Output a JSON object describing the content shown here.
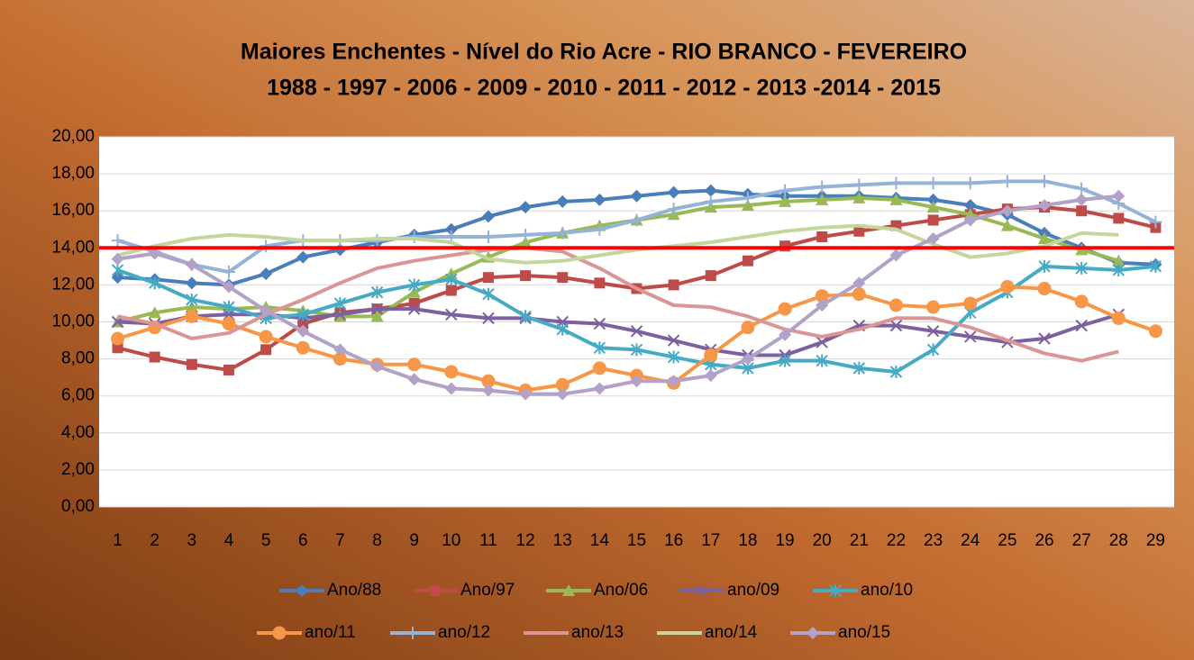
{
  "chart_data": {
    "type": "line",
    "title": [
      "Maiores Enchentes - Nível do Rio Acre -  RIO BRANCO - FEVEREIRO",
      "1988 - 1997 - 2006 - 2009 - 2010 - 2011 - 2012 - 2013 -2014 - 2015"
    ],
    "categories": [
      "1",
      "2",
      "3",
      "4",
      "5",
      "6",
      "7",
      "8",
      "9",
      "10",
      "11",
      "12",
      "13",
      "14",
      "15",
      "16",
      "17",
      "18",
      "19",
      "20",
      "21",
      "22",
      "23",
      "24",
      "25",
      "26",
      "27",
      "28",
      "29"
    ],
    "ylim": [
      0,
      20
    ],
    "yticks": [
      {
        "value": 0,
        "label": "0,00"
      },
      {
        "value": 2,
        "label": "2,00"
      },
      {
        "value": 4,
        "label": "4,00"
      },
      {
        "value": 6,
        "label": "6,00"
      },
      {
        "value": 8,
        "label": "8,00"
      },
      {
        "value": 10,
        "label": "10,00"
      },
      {
        "value": 12,
        "label": "12,00"
      },
      {
        "value": 14,
        "label": "14,00"
      },
      {
        "value": 16,
        "label": "16,00"
      },
      {
        "value": 18,
        "label": "18,00"
      },
      {
        "value": 20,
        "label": "20,00"
      }
    ],
    "grid": true,
    "legend": "bottom",
    "reference_line": {
      "value": 14,
      "color": "#ff0000"
    },
    "series": [
      {
        "name": "Ano/88",
        "color": "#4a7ebb",
        "marker": "diamond",
        "values": [
          12.4,
          12.3,
          12.1,
          12.0,
          12.6,
          13.5,
          13.9,
          14.3,
          14.7,
          15.0,
          15.7,
          16.2,
          16.5,
          16.6,
          16.8,
          17.0,
          17.1,
          16.9,
          16.8,
          16.8,
          16.8,
          16.7,
          16.6,
          16.3,
          15.8,
          14.8,
          14.0,
          13.2,
          13.1
        ]
      },
      {
        "name": "Ano/97",
        "color": "#be4b48",
        "marker": "square",
        "values": [
          8.6,
          8.1,
          7.7,
          7.4,
          8.5,
          9.9,
          10.5,
          10.7,
          11.0,
          11.7,
          12.4,
          12.5,
          12.4,
          12.1,
          11.8,
          12.0,
          12.5,
          13.3,
          14.1,
          14.6,
          14.9,
          15.2,
          15.5,
          15.8,
          16.1,
          16.2,
          16.0,
          15.6,
          15.1
        ]
      },
      {
        "name": "Ano/06",
        "color": "#98b954",
        "marker": "triangle",
        "values": [
          10.0,
          10.5,
          10.8,
          10.7,
          10.8,
          10.6,
          10.3,
          10.3,
          11.6,
          12.6,
          13.5,
          14.3,
          14.8,
          15.2,
          15.5,
          15.8,
          16.2,
          16.3,
          16.5,
          16.6,
          16.7,
          16.6,
          16.2,
          15.8,
          15.2,
          14.5,
          13.9,
          13.3,
          null
        ]
      },
      {
        "name": "ano/09",
        "color": "#7d60a0",
        "marker": "x",
        "values": [
          10.0,
          9.9,
          10.3,
          10.4,
          10.4,
          10.2,
          10.4,
          10.7,
          10.7,
          10.4,
          10.2,
          10.2,
          10.0,
          9.9,
          9.5,
          9.0,
          8.5,
          8.2,
          8.2,
          8.9,
          9.8,
          9.8,
          9.5,
          9.2,
          8.9,
          9.1,
          9.8,
          10.4,
          null
        ]
      },
      {
        "name": "ano/10",
        "color": "#46aac5",
        "marker": "star",
        "values": [
          12.8,
          12.1,
          11.2,
          10.8,
          10.2,
          10.4,
          11.0,
          11.6,
          12.0,
          12.3,
          11.5,
          10.3,
          9.6,
          8.6,
          8.5,
          8.1,
          7.7,
          7.5,
          7.9,
          7.9,
          7.5,
          7.3,
          8.5,
          10.5,
          11.6,
          13.0,
          12.9,
          12.8,
          13.0
        ]
      },
      {
        "name": "ano/11",
        "color": "#f79646",
        "marker": "circle",
        "values": [
          9.1,
          9.7,
          10.3,
          9.9,
          9.2,
          8.6,
          8.0,
          7.7,
          7.7,
          7.3,
          6.8,
          6.3,
          6.6,
          7.5,
          7.1,
          6.7,
          8.2,
          9.7,
          10.7,
          11.4,
          11.5,
          10.9,
          10.8,
          11.0,
          11.9,
          11.8,
          11.1,
          10.2,
          9.5
        ]
      },
      {
        "name": "ano/12",
        "color": "#95b3d7",
        "marker": "plus",
        "values": [
          14.4,
          13.8,
          13.1,
          12.7,
          14.1,
          14.4,
          14.4,
          14.4,
          14.6,
          14.6,
          14.6,
          14.7,
          14.8,
          15.0,
          15.5,
          16.1,
          16.5,
          16.7,
          17.1,
          17.3,
          17.4,
          17.5,
          17.5,
          17.5,
          17.6,
          17.6,
          17.2,
          16.4,
          15.4
        ]
      },
      {
        "name": "ano/13",
        "color": "#d99694",
        "marker": "none",
        "values": [
          10.3,
          9.9,
          9.1,
          9.4,
          10.4,
          11.2,
          12.1,
          12.9,
          13.3,
          13.6,
          13.9,
          14.0,
          13.8,
          12.9,
          11.8,
          10.9,
          10.8,
          10.3,
          9.6,
          9.2,
          9.6,
          10.2,
          10.2,
          9.7,
          9.0,
          8.3,
          7.9,
          8.4,
          null
        ]
      },
      {
        "name": "ano/14",
        "color": "#c3d69b",
        "marker": "none",
        "values": [
          13.6,
          14.1,
          14.5,
          14.7,
          14.6,
          14.4,
          14.4,
          14.5,
          14.5,
          14.3,
          13.4,
          13.2,
          13.3,
          13.6,
          13.9,
          14.1,
          14.3,
          14.6,
          14.9,
          15.1,
          15.2,
          15.0,
          14.2,
          13.5,
          13.7,
          14.1,
          14.8,
          14.7,
          null
        ]
      },
      {
        "name": "ano/15",
        "color": "#b3a2c7",
        "marker": "diamond",
        "values": [
          13.4,
          13.7,
          13.1,
          11.9,
          10.6,
          9.5,
          8.5,
          7.6,
          6.9,
          6.4,
          6.3,
          6.1,
          6.1,
          6.4,
          6.8,
          6.8,
          7.1,
          8.0,
          9.3,
          10.9,
          12.1,
          13.6,
          14.5,
          15.5,
          16.0,
          16.3,
          16.6,
          16.8,
          null
        ]
      }
    ]
  }
}
